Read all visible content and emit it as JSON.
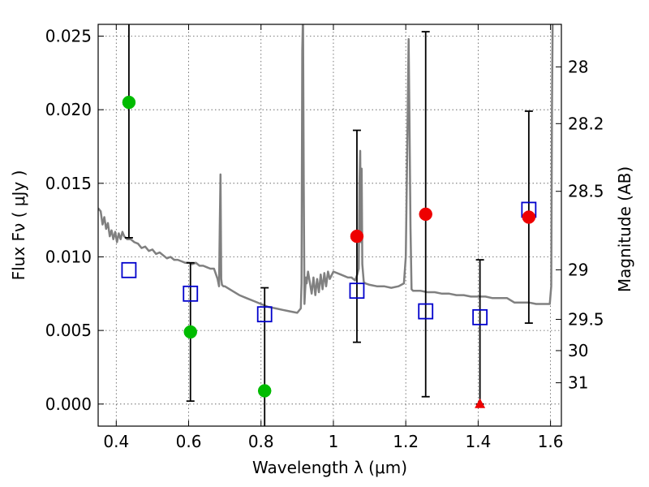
{
  "chart_data": {
    "type": "scatter",
    "xlabel": "Wavelength  λ (μm)",
    "ylabel": "Flux  Fν  ( μJy )",
    "y2label": "Magnitude (AB)",
    "xlim": [
      0.35,
      1.63
    ],
    "ylim": [
      -0.0015,
      0.0258
    ],
    "grid": true,
    "x_ticks": [
      {
        "value": 0.4,
        "label": "0.4"
      },
      {
        "value": 0.6,
        "label": "0.6"
      },
      {
        "value": 0.8,
        "label": "0.8"
      },
      {
        "value": 1.0,
        "label": "1"
      },
      {
        "value": 1.2,
        "label": "1.2"
      },
      {
        "value": 1.4,
        "label": "1.4"
      },
      {
        "value": 1.6,
        "label": "1.6"
      }
    ],
    "y_ticks": [
      {
        "value": 0.0,
        "label": "0.000"
      },
      {
        "value": 0.005,
        "label": "0.005"
      },
      {
        "value": 0.01,
        "label": "0.010"
      },
      {
        "value": 0.015,
        "label": "0.015"
      },
      {
        "value": 0.02,
        "label": "0.020"
      },
      {
        "value": 0.025,
        "label": "0.025"
      }
    ],
    "y2_ticks": [
      {
        "mag": 28.0,
        "label": "28"
      },
      {
        "mag": 28.2,
        "label": "28.2"
      },
      {
        "mag": 28.5,
        "label": "28.5"
      },
      {
        "mag": 29.0,
        "label": "29"
      },
      {
        "mag": 29.5,
        "label": "29.5"
      },
      {
        "mag": 30.0,
        "label": "30"
      },
      {
        "mag": 31.0,
        "label": "31"
      }
    ],
    "colors": {
      "model": "#808080",
      "model_points": "#0000cc",
      "detections_red": "#ee0000",
      "detections_green": "#00bb00",
      "errorbars": "#000000",
      "grid": "#555555"
    },
    "model_spectrum": {
      "x": [
        0.35,
        0.357,
        0.362,
        0.367,
        0.372,
        0.377,
        0.382,
        0.387,
        0.392,
        0.397,
        0.402,
        0.407,
        0.412,
        0.417,
        0.422,
        0.43,
        0.44,
        0.45,
        0.46,
        0.47,
        0.48,
        0.49,
        0.5,
        0.51,
        0.52,
        0.53,
        0.54,
        0.55,
        0.56,
        0.57,
        0.58,
        0.59,
        0.6,
        0.61,
        0.62,
        0.63,
        0.64,
        0.65,
        0.66,
        0.67,
        0.68,
        0.684,
        0.686,
        0.688,
        0.69,
        0.692,
        0.696,
        0.7,
        0.72,
        0.74,
        0.76,
        0.78,
        0.8,
        0.82,
        0.84,
        0.86,
        0.88,
        0.9,
        0.91,
        0.912,
        0.914,
        0.916,
        0.918,
        0.92,
        0.922,
        0.924,
        0.926,
        0.93,
        0.94,
        0.945,
        0.95,
        0.955,
        0.96,
        0.965,
        0.97,
        0.975,
        0.98,
        0.985,
        0.99,
        1.0,
        1.02,
        1.04,
        1.05,
        1.06,
        1.066,
        1.07,
        1.072,
        1.074,
        1.076,
        1.078,
        1.08,
        1.084,
        1.088,
        1.1,
        1.12,
        1.14,
        1.16,
        1.18,
        1.195,
        1.2,
        1.205,
        1.208,
        1.21,
        1.213,
        1.216,
        1.22,
        1.24,
        1.26,
        1.28,
        1.3,
        1.32,
        1.34,
        1.36,
        1.38,
        1.4,
        1.42,
        1.44,
        1.46,
        1.48,
        1.5,
        1.52,
        1.54,
        1.56,
        1.58,
        1.598,
        1.602,
        1.604,
        1.606,
        1.63
      ],
      "y": [
        0.0133,
        0.0131,
        0.0122,
        0.0127,
        0.0119,
        0.0123,
        0.0114,
        0.0118,
        0.0112,
        0.0117,
        0.011,
        0.0116,
        0.0112,
        0.0117,
        0.0114,
        0.0112,
        0.0112,
        0.011,
        0.0109,
        0.0106,
        0.0107,
        0.0104,
        0.0105,
        0.0102,
        0.0103,
        0.0101,
        0.0099,
        0.01,
        0.0098,
        0.0098,
        0.0097,
        0.0096,
        0.0096,
        0.0095,
        0.0096,
        0.0094,
        0.0094,
        0.0093,
        0.0092,
        0.0092,
        0.0085,
        0.008,
        0.012,
        0.0156,
        0.0085,
        0.0081,
        0.008,
        0.008,
        0.0077,
        0.0074,
        0.0072,
        0.007,
        0.0068,
        0.0066,
        0.0065,
        0.0064,
        0.0063,
        0.0062,
        0.0065,
        0.0082,
        0.024,
        0.0265,
        0.015,
        0.0068,
        0.0078,
        0.0086,
        0.0082,
        0.009,
        0.0075,
        0.0086,
        0.0074,
        0.0085,
        0.0076,
        0.0088,
        0.0078,
        0.0089,
        0.008,
        0.009,
        0.0085,
        0.009,
        0.0088,
        0.0086,
        0.0086,
        0.0084,
        0.0088,
        0.0092,
        0.015,
        0.0172,
        0.011,
        0.016,
        0.0095,
        0.0083,
        0.0082,
        0.0081,
        0.008,
        0.008,
        0.0079,
        0.008,
        0.0082,
        0.01,
        0.019,
        0.0248,
        0.02,
        0.012,
        0.0078,
        0.0077,
        0.0077,
        0.0076,
        0.0076,
        0.0075,
        0.0075,
        0.0074,
        0.0074,
        0.0073,
        0.0073,
        0.0073,
        0.0072,
        0.0072,
        0.0072,
        0.0069,
        0.0069,
        0.0069,
        0.0068,
        0.0068,
        0.0068,
        0.008,
        0.02,
        0.0265,
        0.0265
      ]
    },
    "series": [
      {
        "marker": "open-square",
        "color": "#0000cc",
        "points": [
          {
            "x": 0.435,
            "y": 0.0091
          },
          {
            "x": 0.605,
            "y": 0.0075
          },
          {
            "x": 0.81,
            "y": 0.0061
          },
          {
            "x": 1.065,
            "y": 0.0077
          },
          {
            "x": 1.255,
            "y": 0.0063
          },
          {
            "x": 1.405,
            "y": 0.0059
          },
          {
            "x": 1.54,
            "y": 0.0132
          }
        ]
      },
      {
        "marker": "filled-circle",
        "color": "#00bb00",
        "points": [
          {
            "x": 0.435,
            "y": 0.0205,
            "ylow": 0.0113,
            "yhigh": 0.03
          },
          {
            "x": 0.605,
            "y": 0.0049,
            "ylow": 0.0002,
            "yhigh": 0.0096
          },
          {
            "x": 0.81,
            "y": 0.0009,
            "ylow": -0.006,
            "yhigh": 0.0079
          }
        ]
      },
      {
        "marker": "filled-circle",
        "color": "#ee0000",
        "points": [
          {
            "x": 1.065,
            "y": 0.0114,
            "ylow": 0.0042,
            "yhigh": 0.0186
          },
          {
            "x": 1.255,
            "y": 0.0129,
            "ylow": 0.0005,
            "yhigh": 0.0253
          },
          {
            "x": 1.54,
            "y": 0.0127,
            "ylow": 0.0055,
            "yhigh": 0.0199
          }
        ]
      },
      {
        "marker": "triangle",
        "color": "#ee0000",
        "points": [
          {
            "x": 1.405,
            "y": 0.0,
            "ylow": 0.0,
            "yhigh": 0.0098
          }
        ]
      }
    ]
  }
}
